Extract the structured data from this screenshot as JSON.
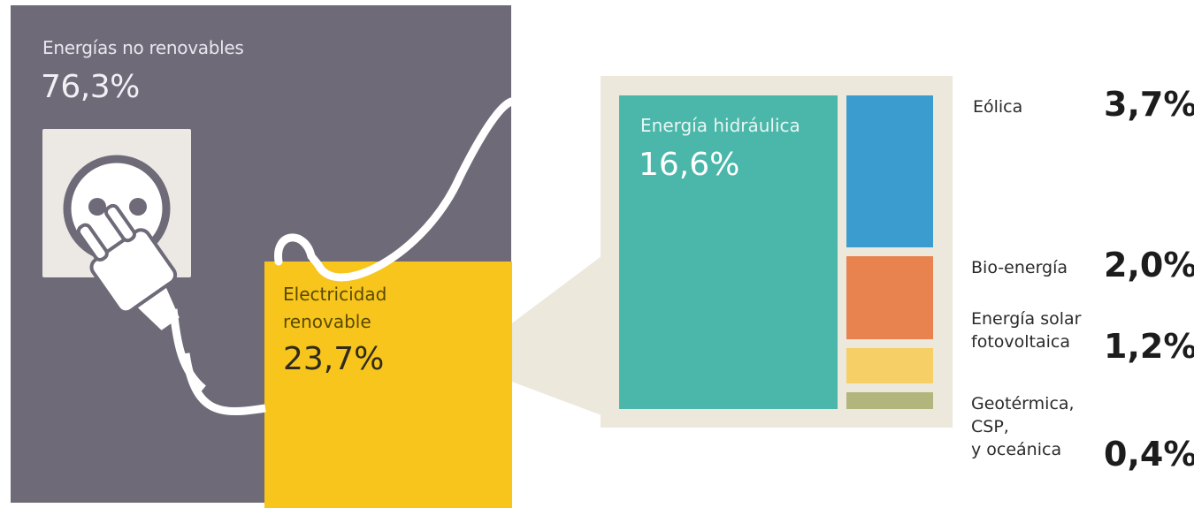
{
  "non_renewable": {
    "label": "Energías no renovables",
    "value": "76,3%",
    "color": "#6e6a78"
  },
  "renewable": {
    "label": "Electricidad\nrenovable",
    "value": "23,7%",
    "color": "#f7c51c"
  },
  "breakdown": [
    {
      "label": "Energía hidráulica",
      "value": "16,6%",
      "color": "#4ab7aa"
    },
    {
      "label": "Eólica",
      "value": "3,7%",
      "color": "#3a9ccf"
    },
    {
      "label": "Bio-energía",
      "value": "2,0%",
      "color": "#e8834f"
    },
    {
      "label": "Energía solar\nfotovoltaica",
      "value": "1,2%",
      "color": "#f6d067"
    },
    {
      "label": "Geotérmica,\nCSP,\ny oceánica",
      "value": "0,4%",
      "color": "#b2b57c"
    }
  ],
  "callout_color": "#ece8dc",
  "socket_color": "#ece8e4"
}
